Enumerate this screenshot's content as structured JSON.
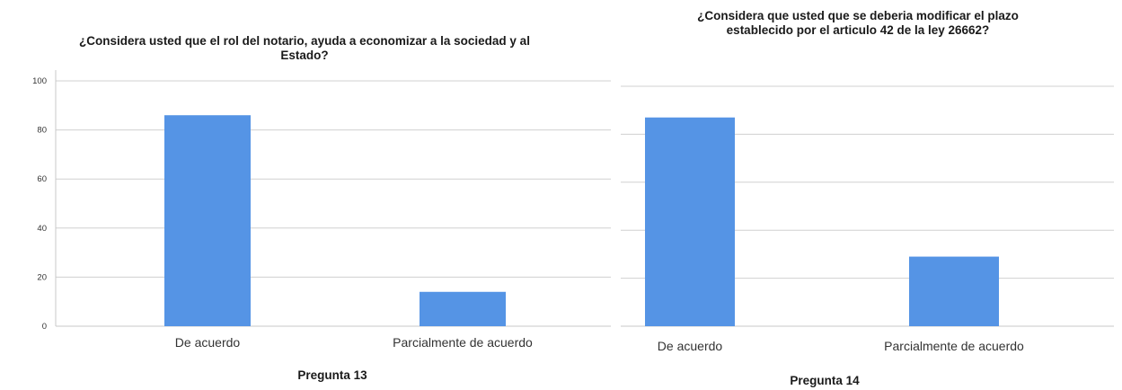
{
  "colors": {
    "bar": "#5594e5",
    "grid": "#d0d0d0",
    "axis": "#c8c8c8"
  },
  "chart_data": [
    {
      "type": "bar",
      "title": "¿Considera usted que el rol del notario, ayuda a economizar a la sociedad y al Estado?",
      "title_lines": [
        "¿Considera usted que el rol del notario, ayuda a economizar a la sociedad y al",
        "Estado?"
      ],
      "xlabel": "Pregunta 13",
      "ylabel": "",
      "categories": [
        "De acuerdo",
        "Parcialmente de acuerdo"
      ],
      "values": [
        86,
        14
      ],
      "ylim": [
        0,
        100
      ],
      "yticks": [
        "0",
        "20",
        "40",
        "60",
        "80",
        "100"
      ],
      "grid": true,
      "show_tick_labels": true
    },
    {
      "type": "bar",
      "title": "¿Considera que usted que se deberia modificar el plazo establecido por el articulo 42 de la ley 26662?",
      "title_lines": [
        "¿Considera que usted que se deberia modificar el plazo",
        "establecido por el articulo 42 de la ley 26662?"
      ],
      "xlabel": "Pregunta 14",
      "ylabel": "",
      "categories": [
        "De acuerdo",
        "Parcialmente de acuerdo"
      ],
      "values": [
        87,
        29
      ],
      "ylim": [
        0,
        100
      ],
      "yticks": [
        "0",
        "20",
        "40",
        "60",
        "80",
        "100"
      ],
      "grid": true,
      "show_tick_labels": false
    }
  ]
}
